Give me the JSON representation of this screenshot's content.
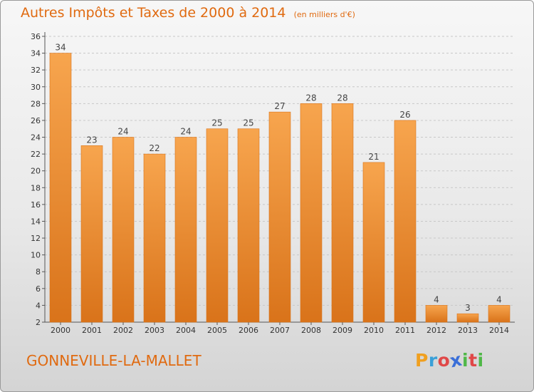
{
  "header": {
    "title": "Autres Impôts et Taxes de 2000 à 2014",
    "subtitle": "(en milliers d'€)"
  },
  "footer": {
    "commune": "GONNEVILLE-LA-MALLET",
    "logo_letters": [
      "P",
      "r",
      "o",
      "x",
      "i",
      "t",
      "i"
    ],
    "logo_colors": [
      "#f0a020",
      "#3aa0d8",
      "#e04848",
      "#3a6fd8",
      "#50b848",
      "#e04848",
      "#50b848"
    ]
  },
  "colors": {
    "bar_fill": "#f5a04d",
    "bar_edge": "#d9731a",
    "text_accent": "#e06a10",
    "grid": "#c8c8c8"
  },
  "chart_data": {
    "type": "bar",
    "title": "Autres Impôts et Taxes de 2000 à 2014",
    "subtitle": "(en milliers d'€)",
    "categories": [
      "2000",
      "2001",
      "2002",
      "2003",
      "2004",
      "2005",
      "2006",
      "2007",
      "2008",
      "2009",
      "2010",
      "2011",
      "2012",
      "2013",
      "2014"
    ],
    "values": [
      34,
      23,
      24,
      22,
      24,
      25,
      25,
      27,
      28,
      28,
      21,
      26,
      4,
      3,
      4
    ],
    "ylim": [
      2,
      36
    ],
    "yticks": [
      2,
      4,
      6,
      8,
      10,
      12,
      14,
      16,
      18,
      20,
      22,
      24,
      26,
      28,
      30,
      32,
      34,
      36
    ],
    "grid": true,
    "grid_style": "dashed horizontal",
    "legend": "none",
    "data_labels": true
  }
}
